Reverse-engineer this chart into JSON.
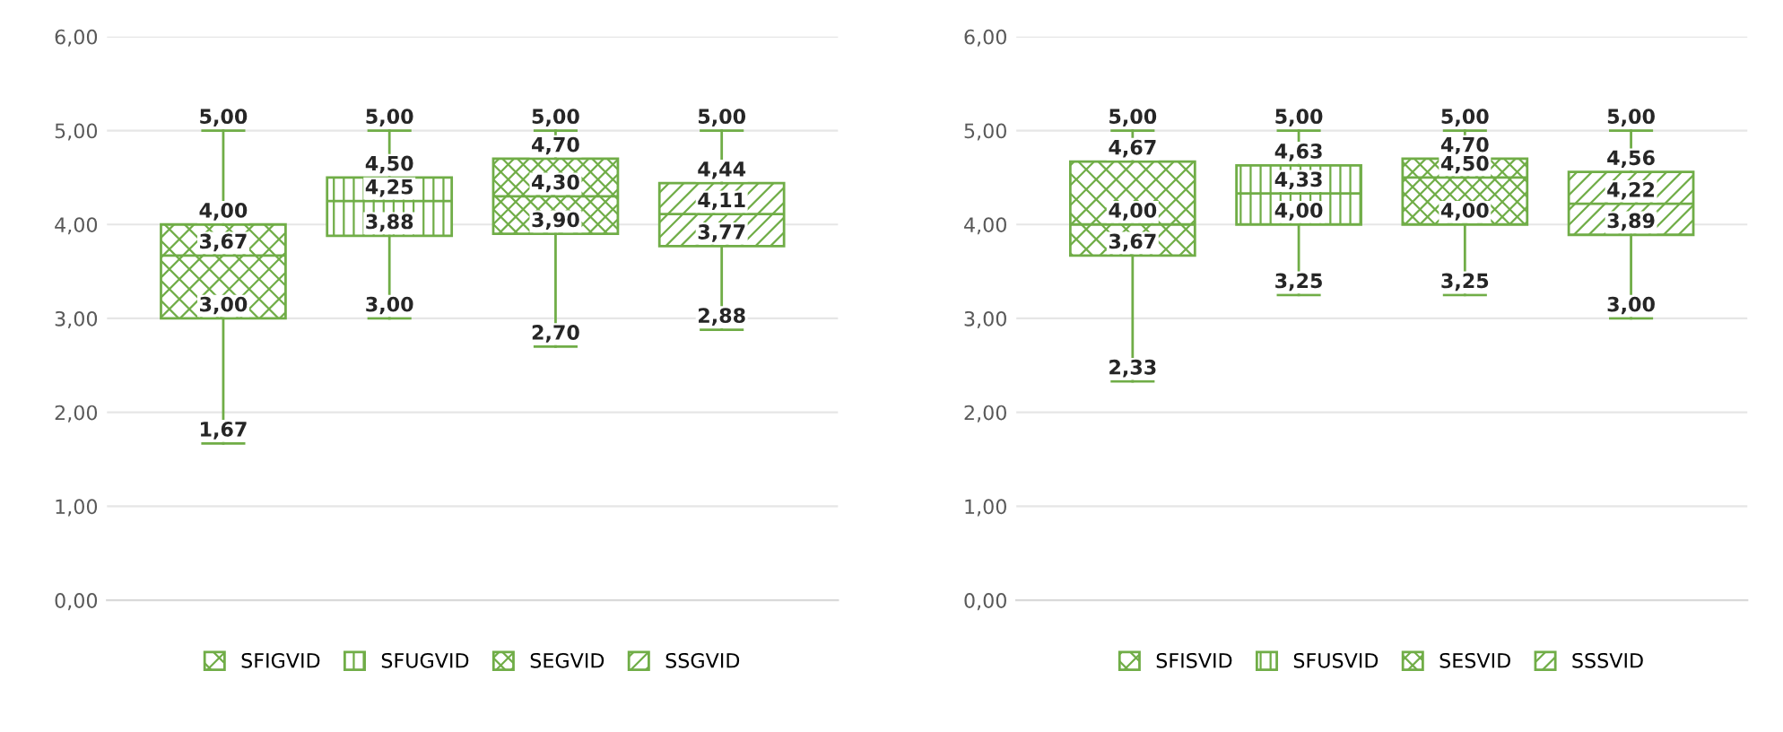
{
  "chart_data": [
    {
      "type": "box",
      "categories": [
        null,
        null,
        null,
        null
      ],
      "ylim": [
        0,
        6
      ],
      "yticks": [
        {
          "value": 0,
          "label": "0,00"
        },
        {
          "value": 1,
          "label": "1,00"
        },
        {
          "value": 2,
          "label": "2,00"
        },
        {
          "value": 3,
          "label": "3,00"
        },
        {
          "value": 4,
          "label": "4,00"
        },
        {
          "value": 5,
          "label": "5,00"
        },
        {
          "value": 6,
          "label": "6,00"
        }
      ],
      "grid": "y",
      "legend": "bottom",
      "series": [
        {
          "name": "SFIGVID",
          "color": "#70ad47",
          "boxes": [
            {
              "low": 1.67,
              "q1": 3.0,
              "median": 3.67,
              "q3": 4.0,
              "high": 5.0
            },
            null,
            null,
            null
          ],
          "value_labels": [
            [
              "5,00",
              "4,00",
              "3,67",
              "3,00",
              "1,67"
            ],
            null,
            null,
            null
          ]
        },
        {
          "name": "SFUGVID",
          "color": "#70ad47",
          "boxes": [
            null,
            {
              "low": 3.0,
              "q1": 3.88,
              "median": 4.25,
              "q3": 4.5,
              "high": 5.0
            },
            null,
            null
          ],
          "value_labels": [
            null,
            [
              "5,00",
              "4,50",
              "4,25",
              "3,88",
              "3,00"
            ],
            null,
            null
          ]
        },
        {
          "name": "SEGVID",
          "color": "#70ad47",
          "boxes": [
            null,
            null,
            {
              "low": 2.7,
              "q1": 3.9,
              "median": 4.3,
              "q3": 4.7,
              "high": 5.0
            },
            null
          ],
          "value_labels": [
            null,
            null,
            [
              "5,00",
              "4,70",
              "4,30",
              "3,90",
              "2,70"
            ],
            null
          ]
        },
        {
          "name": "SSGVID",
          "color": "#70ad47",
          "boxes": [
            null,
            null,
            null,
            {
              "low": 2.88,
              "q1": 3.77,
              "median": 4.11,
              "q3": 4.44,
              "high": 5.0
            }
          ],
          "value_labels": [
            null,
            null,
            null,
            [
              "5,00",
              "4,44",
              "4,11",
              "3,77",
              "2,88"
            ]
          ]
        }
      ]
    },
    {
      "type": "box",
      "categories": [
        null,
        null,
        null,
        null
      ],
      "ylim": [
        0,
        6
      ],
      "yticks": [
        {
          "value": 0,
          "label": "0,00"
        },
        {
          "value": 1,
          "label": "1,00"
        },
        {
          "value": 2,
          "label": "2,00"
        },
        {
          "value": 3,
          "label": "3,00"
        },
        {
          "value": 4,
          "label": "4,00"
        },
        {
          "value": 5,
          "label": "5,00"
        },
        {
          "value": 6,
          "label": "6,00"
        }
      ],
      "grid": "y",
      "legend": "bottom",
      "series": [
        {
          "name": "SFISVID",
          "color": "#70ad47",
          "boxes": [
            {
              "low": 2.33,
              "q1": 3.67,
              "median": 4.0,
              "q3": 4.67,
              "high": 5.0
            },
            null,
            null,
            null
          ],
          "value_labels": [
            [
              "5,00",
              "4,67",
              "4,00",
              "3,67",
              "2,33"
            ],
            null,
            null,
            null
          ]
        },
        {
          "name": "SFUSVID",
          "color": "#70ad47",
          "boxes": [
            null,
            {
              "low": 3.25,
              "q1": 4.0,
              "median": 4.33,
              "q3": 4.63,
              "high": 5.0
            },
            null,
            null
          ],
          "value_labels": [
            null,
            [
              "5,00",
              "4,63",
              "4,33",
              "4,00",
              "3,25"
            ],
            null,
            null
          ]
        },
        {
          "name": "SESVID",
          "color": "#70ad47",
          "boxes": [
            null,
            null,
            {
              "low": 3.25,
              "q1": 4.0,
              "median": 4.5,
              "q3": 4.7,
              "high": 5.0
            },
            null
          ],
          "value_labels": [
            null,
            null,
            [
              "5,00",
              "4,70",
              "4,50",
              "4,00",
              "3,25"
            ],
            null
          ]
        },
        {
          "name": "SSSVID",
          "color": "#70ad47",
          "boxes": [
            null,
            null,
            null,
            {
              "low": 3.0,
              "q1": 3.89,
              "median": 4.22,
              "q3": 4.56,
              "high": 5.0
            }
          ],
          "value_labels": [
            null,
            null,
            null,
            [
              "5,00",
              "4,56",
              "4,22",
              "3,89",
              "3,00"
            ]
          ]
        }
      ]
    }
  ]
}
